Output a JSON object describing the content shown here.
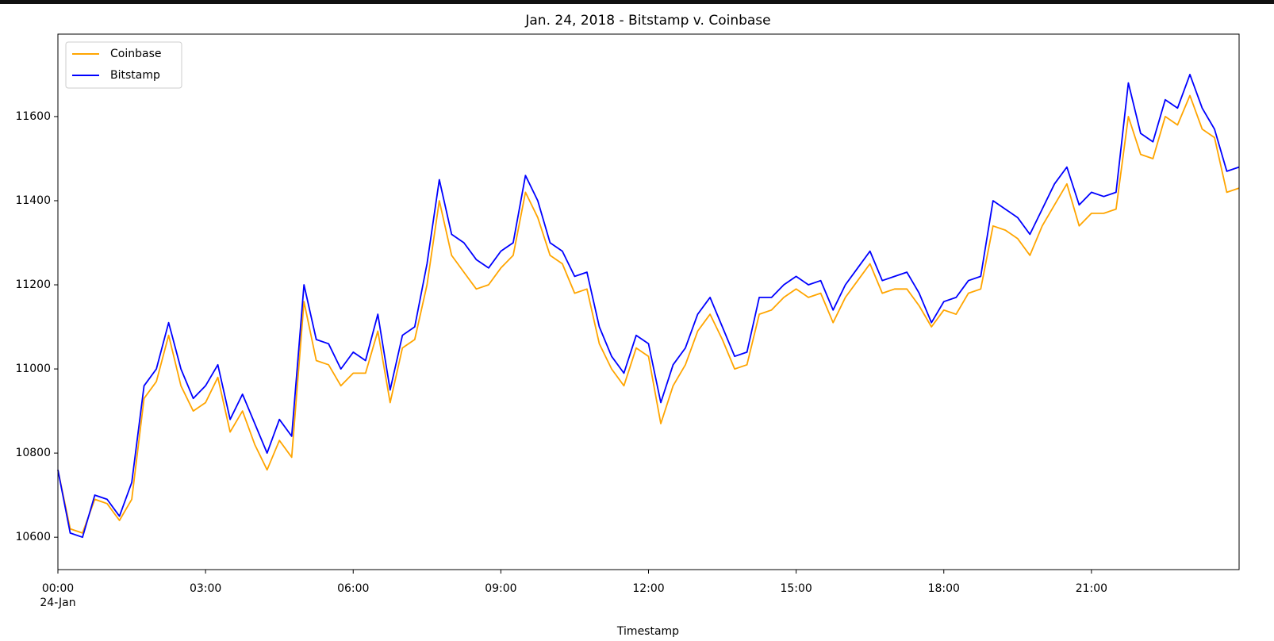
{
  "chart_data": {
    "type": "line",
    "title": "Jan. 24, 2018 - Bitstamp v. Coinbase",
    "xlabel": "Timestamp",
    "x_date": "24-Jan",
    "x": [
      0,
      0.25,
      0.5,
      0.75,
      1,
      1.25,
      1.5,
      1.75,
      2,
      2.25,
      2.5,
      2.75,
      3,
      3.25,
      3.5,
      3.75,
      4,
      4.25,
      4.5,
      4.75,
      5,
      5.25,
      5.5,
      5.75,
      6,
      6.25,
      6.5,
      6.75,
      7,
      7.25,
      7.5,
      7.75,
      8,
      8.25,
      8.5,
      8.75,
      9,
      9.25,
      9.5,
      9.75,
      10,
      10.25,
      10.5,
      10.75,
      11,
      11.25,
      11.5,
      11.75,
      12,
      12.25,
      12.5,
      12.75,
      13,
      13.25,
      13.5,
      13.75,
      14,
      14.25,
      14.5,
      14.75,
      15,
      15.25,
      15.5,
      15.75,
      16,
      16.25,
      16.5,
      16.75,
      17,
      17.25,
      17.5,
      17.75,
      18,
      18.25,
      18.5,
      18.75,
      19,
      19.25,
      19.5,
      19.75,
      20,
      20.25,
      20.5,
      20.75,
      21,
      21.25,
      21.5,
      21.75,
      22,
      22.25,
      22.5,
      22.75,
      23,
      23.25,
      23.5,
      23.75,
      24
    ],
    "series": [
      {
        "name": "Coinbase",
        "color": "orange",
        "values": [
          10760,
          10620,
          10610,
          10690,
          10680,
          10640,
          10690,
          10930,
          10970,
          11080,
          10960,
          10900,
          10920,
          10980,
          10850,
          10900,
          10820,
          10760,
          10830,
          10790,
          11160,
          11020,
          11010,
          10960,
          10990,
          10990,
          11090,
          10920,
          11050,
          11070,
          11200,
          11400,
          11270,
          11230,
          11190,
          11200,
          11240,
          11270,
          11420,
          11360,
          11270,
          11250,
          11180,
          11190,
          11060,
          11000,
          10960,
          11050,
          11030,
          10870,
          10960,
          11010,
          11090,
          11130,
          11070,
          11000,
          11010,
          11130,
          11140,
          11170,
          11190,
          11170,
          11180,
          11110,
          11170,
          11210,
          11250,
          11180,
          11190,
          11190,
          11150,
          11100,
          11140,
          11130,
          11180,
          11190,
          11340,
          11330,
          11310,
          11270,
          11340,
          11390,
          11440,
          11340,
          11370,
          11370,
          11380,
          11600,
          11510,
          11500,
          11600,
          11580,
          11650,
          11570,
          11550,
          11420,
          11430
        ]
      },
      {
        "name": "Bitstamp",
        "color": "blue",
        "values": [
          10760,
          10610,
          10600,
          10700,
          10690,
          10650,
          10730,
          10960,
          11000,
          11110,
          11000,
          10930,
          10960,
          11010,
          10880,
          10940,
          10870,
          10800,
          10880,
          10840,
          11200,
          11070,
          11060,
          11000,
          11040,
          11020,
          11130,
          10950,
          11080,
          11100,
          11250,
          11450,
          11320,
          11300,
          11260,
          11240,
          11280,
          11300,
          11460,
          11400,
          11300,
          11280,
          11220,
          11230,
          11100,
          11030,
          10990,
          11080,
          11060,
          10920,
          11010,
          11050,
          11130,
          11170,
          11100,
          11030,
          11040,
          11170,
          11170,
          11200,
          11220,
          11200,
          11210,
          11140,
          11200,
          11240,
          11280,
          11210,
          11220,
          11230,
          11180,
          11110,
          11160,
          11170,
          11210,
          11220,
          11400,
          11380,
          11360,
          11320,
          11380,
          11440,
          11480,
          11390,
          11420,
          11410,
          11420,
          11680,
          11560,
          11540,
          11640,
          11620,
          11700,
          11620,
          11570,
          11470,
          11480
        ]
      }
    ],
    "xlim": [
      0,
      24
    ],
    "xticks": [
      {
        "value": 0,
        "label": "00:00"
      },
      {
        "value": 3,
        "label": "03:00"
      },
      {
        "value": 6,
        "label": "06:00"
      },
      {
        "value": 9,
        "label": "09:00"
      },
      {
        "value": 12,
        "label": "12:00"
      },
      {
        "value": 15,
        "label": "15:00"
      },
      {
        "value": 18,
        "label": "18:00"
      },
      {
        "value": 21,
        "label": "21:00"
      }
    ],
    "ylim": [
      10523,
      11796
    ],
    "yticks": [
      10600,
      10800,
      11000,
      11200,
      11400,
      11600
    ],
    "legend": "upper left"
  }
}
